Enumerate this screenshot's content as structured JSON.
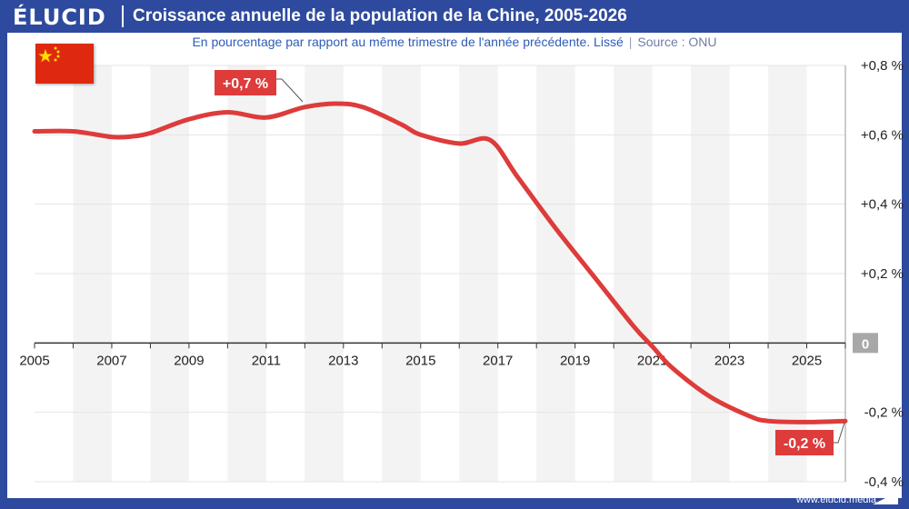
{
  "header": {
    "logo": "ÉLUCID",
    "title": "Croissance annuelle de la population de la Chine, 2005-2026",
    "subtitle": "En pourcentage par rapport au même trimestre de l'année précédente. Lissé",
    "separator": "|",
    "source": "Source : ONU"
  },
  "footer": {
    "site": "www.elucid.media"
  },
  "flag": {
    "name": "china-flag",
    "colors": {
      "field": "#de2910",
      "stars": "#ffde00"
    }
  },
  "colors": {
    "line": "#de3b3b",
    "band": "#f3f3f3",
    "grid": "#e4e4e4",
    "axis": "#333333",
    "zero_badge": "#a8a8a8"
  },
  "chart_data": {
    "type": "line",
    "title": "Croissance annuelle de la population de la Chine, 2005-2026",
    "xlabel": "",
    "ylabel": "",
    "x_ticks": [
      2005,
      2007,
      2009,
      2011,
      2013,
      2015,
      2017,
      2019,
      2021,
      2023,
      2025
    ],
    "xlim": [
      2005,
      2026
    ],
    "ylim": [
      -0.4,
      0.8
    ],
    "y_ticks": [
      {
        "value": 0.8,
        "label": "+0,8 %"
      },
      {
        "value": 0.6,
        "label": "+0,6 %"
      },
      {
        "value": 0.4,
        "label": "+0,4 %"
      },
      {
        "value": 0.2,
        "label": "+0,2 %"
      },
      {
        "value": 0,
        "label": "0"
      },
      {
        "value": -0.2,
        "label": "-0,2 %"
      },
      {
        "value": -0.4,
        "label": "-0,4 %"
      }
    ],
    "grid": true,
    "series": [
      {
        "x": [
          2005.0,
          2006.0,
          2007.0,
          2007.5,
          2008.0,
          2009.0,
          2010.0,
          2011.0,
          2012.0,
          2012.8,
          2013.5,
          2014.5,
          2015.0,
          2016.0,
          2016.8,
          2017.5,
          2018.5,
          2019.5,
          2020.5,
          2021.0,
          2021.5,
          2022.5,
          2023.5,
          2024.0,
          2025.0,
          2026.0
        ],
        "y": [
          0.61,
          0.61,
          0.594,
          0.595,
          0.605,
          0.645,
          0.665,
          0.65,
          0.68,
          0.69,
          0.68,
          0.63,
          0.6,
          0.575,
          0.585,
          0.48,
          0.33,
          0.19,
          0.05,
          -0.01,
          -0.07,
          -0.155,
          -0.21,
          -0.225,
          -0.228,
          -0.225
        ]
      }
    ],
    "annotations": [
      {
        "label": "+0,7 %",
        "x": 2013,
        "y": 0.69
      },
      {
        "label": "-0,2 %",
        "x": 2026,
        "y": -0.225
      }
    ]
  }
}
